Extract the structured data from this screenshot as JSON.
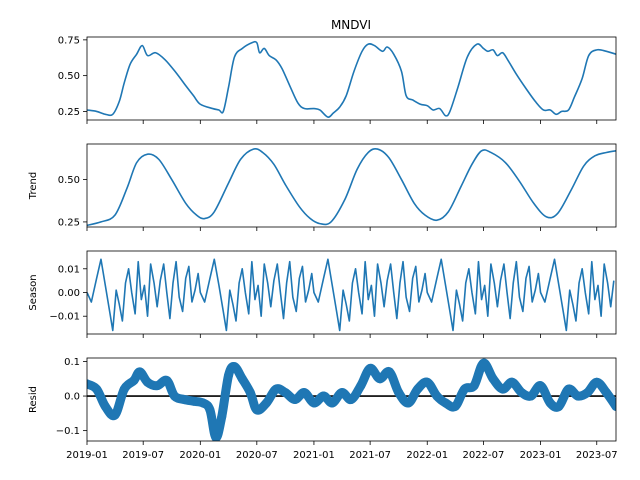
{
  "chart_data": {
    "type": "line",
    "title": "MNDVI",
    "x_tick_labels": [
      "2019-01",
      "2019-07",
      "2020-01",
      "2020-07",
      "2021-01",
      "2021-07",
      "2022-01",
      "2022-07",
      "2023-01",
      "2023-07"
    ],
    "x_ticks": [
      "2019-01-01",
      "2019-07-01",
      "2020-01-01",
      "2020-07-01",
      "2021-01-01",
      "2021-07-01",
      "2022-01-01",
      "2022-07-01",
      "2023-01-01",
      "2023-07-01"
    ],
    "xlim": [
      "2019-01-01",
      "2023-09-01"
    ],
    "colors": {
      "series": "#1f77b4",
      "zero_line": "#000000"
    },
    "panels": [
      {
        "id": "observed",
        "ylabel": "",
        "ylim": [
          0.19,
          0.77
        ],
        "yticks": [
          0.25,
          0.5,
          0.75
        ],
        "ytick_labels": [
          "0.25",
          "0.50",
          "0.75"
        ],
        "style": "line",
        "series": {
          "x": [
            "2019-01-01",
            "2019-02-01",
            "2019-03-01",
            "2019-03-25",
            "2019-04-15",
            "2019-05-01",
            "2019-05-20",
            "2019-06-10",
            "2019-06-28",
            "2019-07-15",
            "2019-08-10",
            "2019-09-10",
            "2019-10-15",
            "2019-11-15",
            "2019-12-10",
            "2020-01-01",
            "2020-02-10",
            "2020-03-01",
            "2020-03-15",
            "2020-04-01",
            "2020-04-20",
            "2020-05-15",
            "2020-06-15",
            "2020-07-01",
            "2020-07-10",
            "2020-07-25",
            "2020-08-10",
            "2020-09-01",
            "2020-09-20",
            "2020-10-15",
            "2020-11-10",
            "2020-12-01",
            "2021-01-01",
            "2021-01-20",
            "2021-02-15",
            "2021-03-05",
            "2021-03-25",
            "2021-04-15",
            "2021-05-10",
            "2021-06-05",
            "2021-06-25",
            "2021-07-15",
            "2021-08-10",
            "2021-08-25",
            "2021-09-15",
            "2021-10-10",
            "2021-10-25",
            "2021-11-15",
            "2021-12-10",
            "2022-01-01",
            "2022-01-20",
            "2022-02-10",
            "2022-03-01",
            "2022-03-15",
            "2022-04-10",
            "2022-05-10",
            "2022-06-10",
            "2022-07-01",
            "2022-07-15",
            "2022-08-01",
            "2022-08-15",
            "2022-09-01",
            "2022-09-20",
            "2022-10-15",
            "2022-11-15",
            "2022-12-15",
            "2023-01-10",
            "2023-02-01",
            "2023-02-20",
            "2023-03-10",
            "2023-04-01",
            "2023-04-20",
            "2023-05-15",
            "2023-06-05",
            "2023-07-01",
            "2023-08-01",
            "2023-09-01"
          ],
          "y": [
            0.26,
            0.25,
            0.23,
            0.23,
            0.32,
            0.45,
            0.58,
            0.65,
            0.71,
            0.64,
            0.66,
            0.61,
            0.52,
            0.43,
            0.36,
            0.3,
            0.27,
            0.26,
            0.25,
            0.42,
            0.63,
            0.69,
            0.73,
            0.73,
            0.66,
            0.69,
            0.64,
            0.61,
            0.55,
            0.43,
            0.31,
            0.27,
            0.27,
            0.26,
            0.21,
            0.24,
            0.28,
            0.36,
            0.53,
            0.67,
            0.72,
            0.71,
            0.67,
            0.7,
            0.65,
            0.53,
            0.36,
            0.33,
            0.3,
            0.29,
            0.26,
            0.27,
            0.22,
            0.25,
            0.42,
            0.63,
            0.72,
            0.69,
            0.67,
            0.68,
            0.64,
            0.66,
            0.6,
            0.51,
            0.41,
            0.32,
            0.26,
            0.26,
            0.23,
            0.25,
            0.26,
            0.35,
            0.48,
            0.64,
            0.68,
            0.67,
            0.65
          ]
        }
      },
      {
        "id": "trend",
        "ylabel": "Trend",
        "ylim": [
          0.22,
          0.71
        ],
        "yticks": [
          0.25,
          0.5
        ],
        "ytick_labels": [
          "0.25",
          "0.50"
        ],
        "style": "line",
        "series": {
          "x": [
            "2019-01-01",
            "2019-02-15",
            "2019-04-01",
            "2019-05-10",
            "2019-06-10",
            "2019-07-15",
            "2019-08-20",
            "2019-10-01",
            "2019-11-15",
            "2019-12-20",
            "2020-01-15",
            "2020-02-15",
            "2020-04-01",
            "2020-05-10",
            "2020-06-20",
            "2020-07-20",
            "2020-08-25",
            "2020-10-01",
            "2020-11-15",
            "2020-12-20",
            "2021-01-20",
            "2021-02-25",
            "2021-04-10",
            "2021-05-20",
            "2021-06-25",
            "2021-07-25",
            "2021-08-30",
            "2021-10-10",
            "2021-11-20",
            "2021-12-25",
            "2022-02-01",
            "2022-03-10",
            "2022-04-20",
            "2022-05-25",
            "2022-06-25",
            "2022-07-25",
            "2022-09-10",
            "2022-10-25",
            "2022-12-10",
            "2023-01-20",
            "2023-02-25",
            "2023-04-10",
            "2023-05-20",
            "2023-06-25",
            "2023-08-01",
            "2023-09-01"
          ],
          "y": [
            0.23,
            0.25,
            0.29,
            0.45,
            0.6,
            0.65,
            0.62,
            0.5,
            0.36,
            0.29,
            0.27,
            0.31,
            0.48,
            0.62,
            0.68,
            0.66,
            0.59,
            0.47,
            0.34,
            0.27,
            0.24,
            0.25,
            0.38,
            0.56,
            0.66,
            0.68,
            0.63,
            0.5,
            0.36,
            0.29,
            0.26,
            0.31,
            0.46,
            0.59,
            0.67,
            0.66,
            0.6,
            0.49,
            0.36,
            0.28,
            0.3,
            0.44,
            0.58,
            0.64,
            0.66,
            0.67
          ]
        }
      },
      {
        "id": "season",
        "ylabel": "Season",
        "ylim": [
          -0.0175,
          0.0175
        ],
        "yticks": [
          -0.01,
          0.0,
          0.01
        ],
        "ytick_labels": [
          "−0.01",
          "0.00",
          "0.01"
        ],
        "style": "line",
        "series": {
          "x": [
            "2019-01-01",
            "2019-01-15",
            "2019-02-01",
            "2019-02-15",
            "2019-03-01",
            "2019-03-15",
            "2019-03-25",
            "2019-04-05",
            "2019-04-15",
            "2019-04-25",
            "2019-05-05",
            "2019-05-15",
            "2019-05-25",
            "2019-06-05",
            "2019-06-15",
            "2019-06-25",
            "2019-07-05",
            "2019-07-15",
            "2019-07-25",
            "2019-08-05",
            "2019-08-15",
            "2019-08-25",
            "2019-09-05",
            "2019-09-15",
            "2019-09-25",
            "2019-10-05",
            "2019-10-15",
            "2019-10-25",
            "2019-11-05",
            "2019-11-15",
            "2019-11-25",
            "2019-12-05",
            "2019-12-15",
            "2019-12-25"
          ],
          "y": [
            0.0,
            -0.004,
            0.006,
            0.014,
            0.003,
            -0.008,
            -0.016,
            0.001,
            -0.005,
            -0.012,
            0.004,
            0.01,
            0.0,
            -0.009,
            0.013,
            -0.003,
            0.003,
            -0.01,
            0.012,
            0.004,
            -0.006,
            0.005,
            0.012,
            0.0,
            -0.011,
            0.004,
            0.013,
            -0.002,
            -0.008,
            0.006,
            0.011,
            -0.004,
            0.001,
            0.008
          ]
        }
      },
      {
        "id": "resid",
        "ylabel": "Resid",
        "ylim": [
          -0.13,
          0.11
        ],
        "yticks": [
          -0.1,
          0.0,
          0.1
        ],
        "ytick_labels": [
          "−0.1",
          "0.0",
          "0.1"
        ],
        "style": "scatter",
        "zero_line": true,
        "series": {
          "x": [
            "2019-01-01",
            "2019-02-01",
            "2019-03-01",
            "2019-04-01",
            "2019-05-01",
            "2019-06-01",
            "2019-06-20",
            "2019-07-15",
            "2019-08-15",
            "2019-09-15",
            "2019-10-10",
            "2019-11-10",
            "2019-12-10",
            "2020-01-10",
            "2020-02-01",
            "2020-02-20",
            "2020-03-10",
            "2020-04-01",
            "2020-04-20",
            "2020-05-15",
            "2020-06-10",
            "2020-07-01",
            "2020-08-01",
            "2020-09-01",
            "2020-10-01",
            "2020-11-01",
            "2020-12-01",
            "2021-01-01",
            "2021-02-01",
            "2021-03-01",
            "2021-04-01",
            "2021-05-01",
            "2021-06-01",
            "2021-07-01",
            "2021-08-01",
            "2021-09-01",
            "2021-10-01",
            "2021-11-01",
            "2021-12-01",
            "2022-01-01",
            "2022-02-01",
            "2022-03-01",
            "2022-04-01",
            "2022-05-01",
            "2022-06-01",
            "2022-07-01",
            "2022-08-01",
            "2022-09-01",
            "2022-10-01",
            "2022-11-01",
            "2022-12-01",
            "2023-01-01",
            "2023-02-01",
            "2023-03-01",
            "2023-04-01",
            "2023-05-01",
            "2023-06-01",
            "2023-07-01",
            "2023-08-01",
            "2023-09-01"
          ],
          "y": [
            0.035,
            0.02,
            -0.03,
            -0.055,
            0.02,
            0.045,
            0.07,
            0.04,
            0.03,
            0.045,
            0.0,
            -0.01,
            -0.015,
            -0.02,
            -0.04,
            -0.12,
            -0.06,
            0.06,
            0.085,
            0.05,
            0.01,
            -0.04,
            -0.02,
            0.02,
            0.01,
            -0.01,
            0.01,
            -0.02,
            0.0,
            -0.02,
            0.01,
            -0.01,
            0.03,
            0.08,
            0.05,
            0.07,
            0.01,
            -0.02,
            0.02,
            0.04,
            0.0,
            -0.02,
            -0.03,
            0.02,
            0.03,
            0.095,
            0.05,
            0.02,
            0.04,
            0.01,
            0.0,
            0.03,
            -0.02,
            -0.03,
            0.02,
            0.0,
            0.01,
            0.04,
            0.01,
            -0.03
          ]
        }
      }
    ]
  }
}
